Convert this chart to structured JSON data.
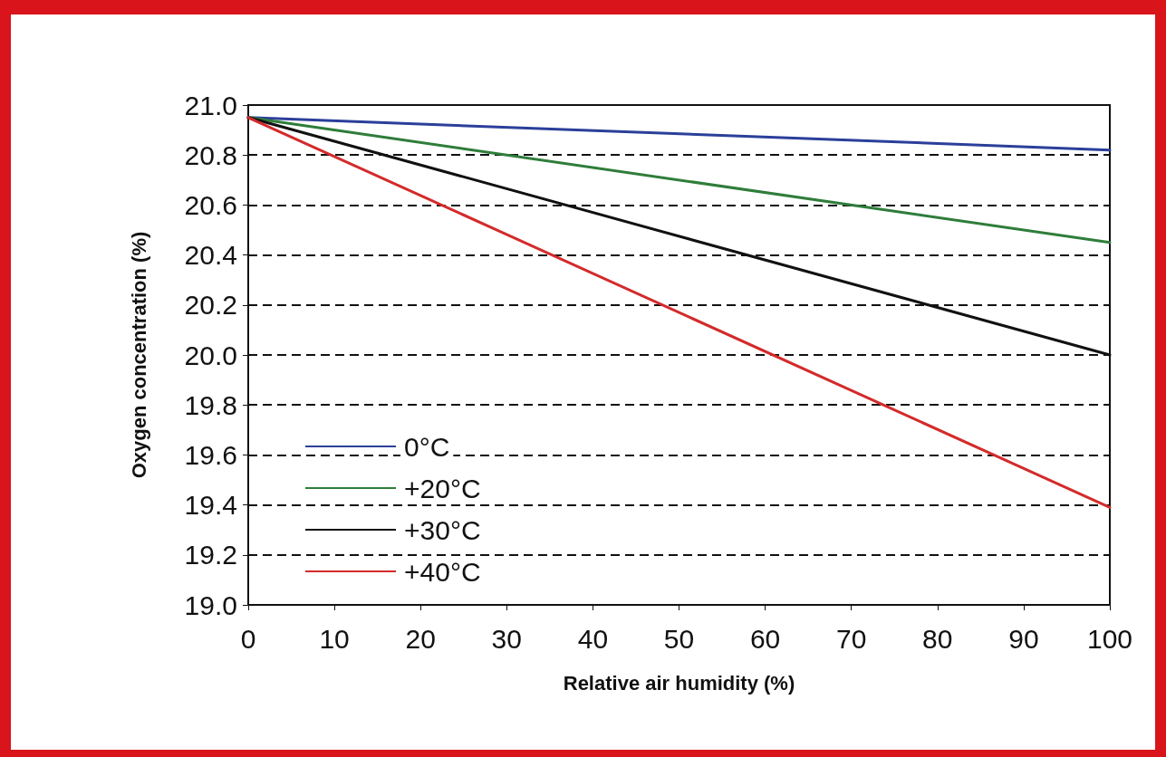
{
  "chart_data": {
    "type": "line",
    "xlabel": "Relative air humidity (%)",
    "ylabel": "Oxygen concentration (%)",
    "xlim": [
      0,
      100
    ],
    "xticks": [
      0,
      10,
      20,
      30,
      40,
      50,
      60,
      70,
      80,
      90,
      100
    ],
    "ylim": [
      19,
      21
    ],
    "yticks": [
      {
        "value": 19,
        "label": "19.0"
      },
      19.2,
      19.4,
      19.6,
      19.8,
      {
        "value": 20,
        "label": "20.0"
      },
      20.2,
      20.4,
      20.6,
      20.8,
      {
        "value": 21,
        "label": "21.0"
      }
    ],
    "grid": "y",
    "legend": "bottom left",
    "marker": "none",
    "line_style": "solid",
    "x": [
      0,
      100
    ],
    "series": [
      {
        "name": "0°C",
        "color": "#2b3f9a",
        "values": [
          20.95,
          20.82
        ]
      },
      {
        "name": "+20°C",
        "color": "#2e7d3a",
        "values": [
          20.95,
          20.45
        ]
      },
      {
        "name": "+30°C",
        "color": "#111111",
        "values": [
          20.95,
          20.0
        ]
      },
      {
        "name": "+40°C",
        "color": "#d42a2a",
        "values": [
          20.95,
          19.39
        ]
      }
    ]
  }
}
